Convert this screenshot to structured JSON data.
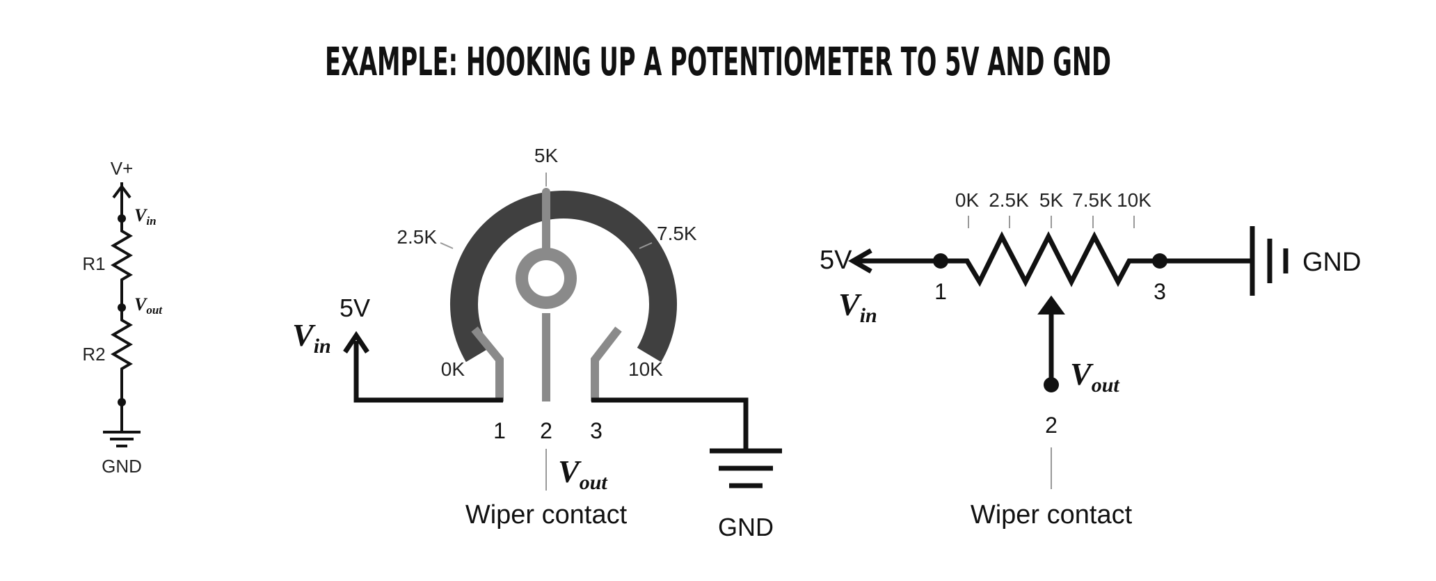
{
  "title": "EXAMPLE: HOOKING UP A POTENTIOMETER TO 5V AND GND",
  "left_schematic": {
    "vplus": "V+",
    "vin": "V",
    "vin_sub": "in",
    "r1": "R1",
    "vout": "V",
    "vout_sub": "out",
    "r2": "R2",
    "gnd": "GND"
  },
  "pot_physical": {
    "tick_5k": "5K",
    "tick_2_5k": "2.5K",
    "tick_7_5k": "7.5K",
    "tick_0k": "0K",
    "tick_10k": "10K",
    "supply": "5V",
    "vin": "V",
    "vin_sub": "in",
    "pin1": "1",
    "pin2": "2",
    "pin3": "3",
    "vout": "V",
    "vout_sub": "out",
    "wiper_caption": "Wiper contact",
    "gnd": "GND"
  },
  "pot_schematic": {
    "scale": [
      "0K",
      "2.5K",
      "5K",
      "7.5K",
      "10K"
    ],
    "supply": "5V",
    "vin": "V",
    "vin_sub": "in",
    "pin1": "1",
    "pin3": "3",
    "gnd": "GND",
    "vout": "V",
    "vout_sub": "out",
    "pin2": "2",
    "wiper_caption": "Wiper contact"
  },
  "colors": {
    "wire": "#111111",
    "track": "#404040",
    "pin": "#8a8a8a",
    "leader": "#999999"
  }
}
